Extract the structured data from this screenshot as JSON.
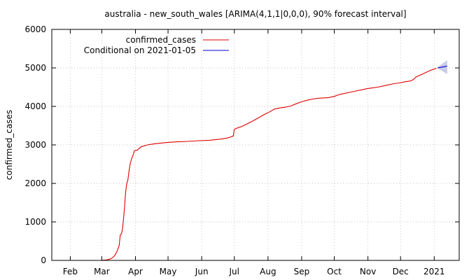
{
  "chart_data": {
    "type": "line",
    "title": "australia - new_south_wales [ARIMA(4,1,1|0,0,0), 90% forecast interval]",
    "xlabel": "",
    "ylabel": "confirmed_cases",
    "ylim": [
      0,
      6000
    ],
    "xlim_days": [
      0,
      375
    ],
    "x_unit": "days since 2020-01-15",
    "yticks": [
      0,
      1000,
      2000,
      3000,
      4000,
      5000,
      6000
    ],
    "xticks": [
      {
        "label": "Feb",
        "day": 17
      },
      {
        "label": "Mar",
        "day": 46
      },
      {
        "label": "Apr",
        "day": 77
      },
      {
        "label": "May",
        "day": 107
      },
      {
        "label": "Jun",
        "day": 138
      },
      {
        "label": "Jul",
        "day": 168
      },
      {
        "label": "Aug",
        "day": 199
      },
      {
        "label": "Sep",
        "day": 230
      },
      {
        "label": "Oct",
        "day": 260
      },
      {
        "label": "Nov",
        "day": 291
      },
      {
        "label": "Dec",
        "day": 321
      },
      {
        "label": "2021",
        "day": 352
      }
    ],
    "grid": true,
    "legend_position": "top-left",
    "series": [
      {
        "name": "confirmed_cases",
        "color": "#e00000",
        "points": [
          [
            46,
            3
          ],
          [
            50,
            10
          ],
          [
            54,
            40
          ],
          [
            56,
            70
          ],
          [
            58,
            130
          ],
          [
            60,
            230
          ],
          [
            62,
            380
          ],
          [
            63,
            660
          ],
          [
            64,
            680
          ],
          [
            65,
            800
          ],
          [
            66,
            1060
          ],
          [
            67,
            1400
          ],
          [
            68,
            1780
          ],
          [
            69,
            2000
          ],
          [
            70,
            2080
          ],
          [
            71,
            2300
          ],
          [
            72,
            2480
          ],
          [
            73,
            2600
          ],
          [
            74,
            2680
          ],
          [
            75,
            2750
          ],
          [
            76,
            2850
          ],
          [
            79,
            2870
          ],
          [
            82,
            2950
          ],
          [
            88,
            3000
          ],
          [
            95,
            3030
          ],
          [
            105,
            3060
          ],
          [
            115,
            3080
          ],
          [
            125,
            3090
          ],
          [
            135,
            3110
          ],
          [
            145,
            3120
          ],
          [
            155,
            3150
          ],
          [
            162,
            3180
          ],
          [
            167,
            3230
          ],
          [
            168,
            3400
          ],
          [
            170,
            3430
          ],
          [
            175,
            3480
          ],
          [
            180,
            3550
          ],
          [
            185,
            3620
          ],
          [
            190,
            3700
          ],
          [
            195,
            3780
          ],
          [
            200,
            3850
          ],
          [
            205,
            3930
          ],
          [
            210,
            3960
          ],
          [
            215,
            3980
          ],
          [
            220,
            4010
          ],
          [
            225,
            4070
          ],
          [
            230,
            4120
          ],
          [
            235,
            4160
          ],
          [
            240,
            4190
          ],
          [
            245,
            4210
          ],
          [
            250,
            4220
          ],
          [
            255,
            4230
          ],
          [
            260,
            4260
          ],
          [
            265,
            4310
          ],
          [
            270,
            4340
          ],
          [
            275,
            4370
          ],
          [
            280,
            4400
          ],
          [
            285,
            4430
          ],
          [
            290,
            4460
          ],
          [
            295,
            4480
          ],
          [
            300,
            4500
          ],
          [
            305,
            4530
          ],
          [
            310,
            4560
          ],
          [
            315,
            4590
          ],
          [
            320,
            4610
          ],
          [
            325,
            4640
          ],
          [
            330,
            4660
          ],
          [
            333,
            4700
          ],
          [
            335,
            4760
          ],
          [
            338,
            4800
          ],
          [
            342,
            4850
          ],
          [
            345,
            4890
          ],
          [
            348,
            4930
          ],
          [
            351,
            4960
          ],
          [
            354,
            4990
          ]
        ]
      },
      {
        "name": "Conditional on 2021-01-05",
        "color": "#0000cc",
        "points": [
          [
            355,
            5000
          ],
          [
            358,
            5015
          ],
          [
            361,
            5030
          ],
          [
            364,
            5045
          ]
        ],
        "interval_upper": [
          [
            355,
            5010
          ],
          [
            358,
            5080
          ],
          [
            361,
            5140
          ],
          [
            364,
            5200
          ]
        ],
        "interval_lower": [
          [
            355,
            4990
          ],
          [
            358,
            4940
          ],
          [
            361,
            4890
          ],
          [
            364,
            4840
          ]
        ],
        "interval_color": "#c8cce8"
      }
    ]
  }
}
